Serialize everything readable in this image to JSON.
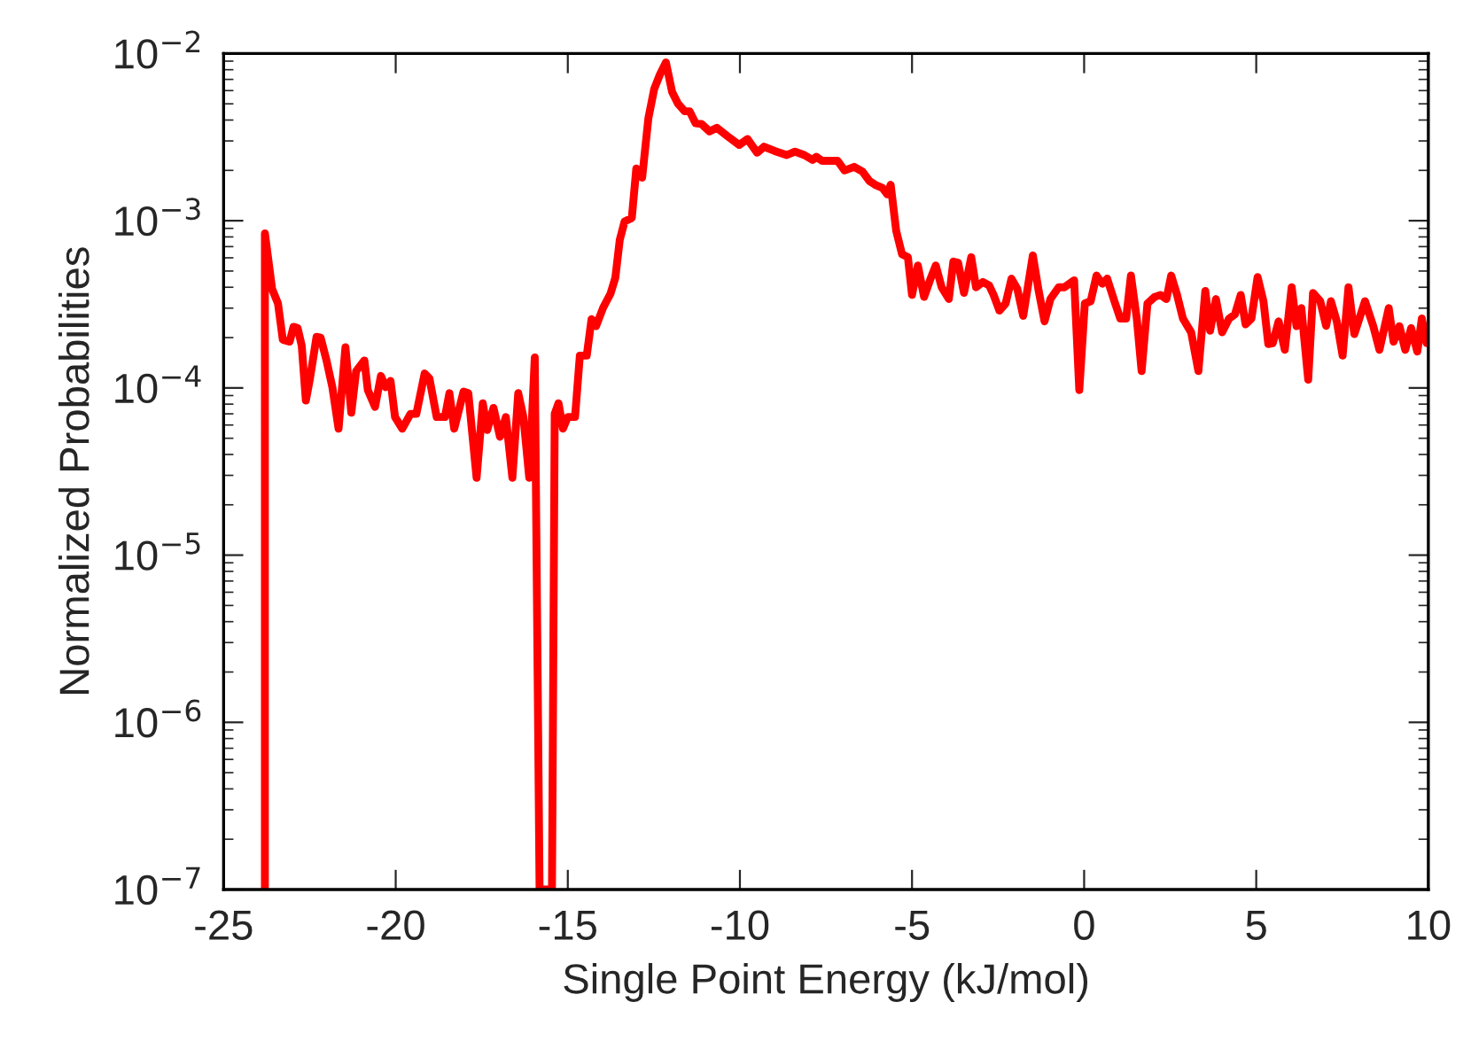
{
  "chart_data": {
    "type": "line",
    "xlabel": "Single Point Energy (kJ/mol)",
    "ylabel": "Normalized Probabilities",
    "log": "y",
    "grid": false,
    "xlim": [
      -25,
      10
    ],
    "xticks": [
      -25,
      -20,
      -15,
      -10,
      -5,
      0,
      5,
      10
    ],
    "ylim": [
      1e-07,
      0.01
    ],
    "yticks": [
      {
        "value": 1e-07,
        "label": "10$^{−7}$"
      },
      {
        "value": 1e-06,
        "label": "10$^{−6}$"
      },
      {
        "value": 1e-05,
        "label": "10$^{−5}$"
      },
      {
        "value": 0.0001,
        "label": "10$^{−4}$"
      },
      {
        "value": 0.001,
        "label": "10$^{−3}$"
      },
      {
        "value": 0.01,
        "label": "10$^{−2}$"
      }
    ],
    "series": [
      {
        "color": "#ff0000",
        "marker": "none",
        "line_style": "solid",
        "x": [
          -23.8,
          -23.8,
          -23.59,
          -23.42,
          -23.28,
          -23.08,
          -22.97,
          -22.85,
          -22.73,
          -22.61,
          -22.49,
          -22.3,
          -22.18,
          -22.01,
          -21.84,
          -21.66,
          -21.46,
          -21.29,
          -21.15,
          -20.91,
          -20.81,
          -20.6,
          -20.43,
          -20.29,
          -20.15,
          -20.02,
          -19.81,
          -19.57,
          -19.4,
          -19.16,
          -19.02,
          -18.81,
          -18.57,
          -18.44,
          -18.3,
          -18.03,
          -17.89,
          -17.65,
          -17.47,
          -17.34,
          -17.16,
          -16.97,
          -16.8,
          -16.61,
          -16.44,
          -16.29,
          -16.12,
          -15.96,
          -15.82,
          -15.46,
          -15.38,
          -15.27,
          -15.14,
          -15.0,
          -14.79,
          -14.65,
          -14.45,
          -14.31,
          -14.18,
          -13.97,
          -13.76,
          -13.62,
          -13.49,
          -13.35,
          -13.14,
          -13.01,
          -12.84,
          -12.66,
          -12.49,
          -12.32,
          -12.15,
          -11.97,
          -11.8,
          -11.6,
          -11.46,
          -11.29,
          -11.12,
          -10.88,
          -10.67,
          -10.36,
          -10.02,
          -9.78,
          -9.5,
          -9.3,
          -8.99,
          -8.64,
          -8.4,
          -8.13,
          -7.89,
          -7.78,
          -7.61,
          -7.16,
          -6.96,
          -6.68,
          -6.44,
          -6.24,
          -6.07,
          -5.86,
          -5.72,
          -5.62,
          -5.46,
          -5.29,
          -5.12,
          -5.0,
          -4.83,
          -4.65,
          -4.48,
          -4.31,
          -4.14,
          -3.93,
          -3.8,
          -3.66,
          -3.49,
          -3.28,
          -3.14,
          -2.94,
          -2.76,
          -2.63,
          -2.46,
          -2.28,
          -2.11,
          -1.94,
          -1.77,
          -1.49,
          -1.32,
          -1.15,
          -0.98,
          -0.74,
          -0.57,
          -0.29,
          -0.14,
          0.02,
          0.19,
          0.36,
          0.53,
          0.67,
          0.88,
          1.05,
          1.22,
          1.36,
          1.53,
          1.67,
          1.84,
          2.05,
          2.22,
          2.39,
          2.53,
          2.7,
          2.87,
          3.11,
          3.32,
          3.52,
          3.66,
          3.83,
          4.01,
          4.21,
          4.38,
          4.55,
          4.69,
          4.86,
          5.04,
          5.21,
          5.35,
          5.48,
          5.65,
          5.83,
          6.03,
          6.17,
          6.31,
          6.51,
          6.65,
          6.86,
          7.03,
          7.17,
          7.34,
          7.51,
          7.68,
          7.85,
          8.16,
          8.4,
          8.58,
          8.85,
          8.99,
          9.16,
          9.33,
          9.5,
          9.68,
          9.81,
          9.95,
          10.0
        ],
        "values": [
          1e-07,
          0.00084,
          0.00039,
          0.00032,
          0.000194,
          0.000189,
          0.000232,
          0.000228,
          0.000179,
          8.4e-05,
          0.000114,
          0.000202,
          0.0002,
          0.000146,
          0.000101,
          5.7e-05,
          0.000175,
          7.1e-05,
          0.000126,
          0.000146,
          9.7e-05,
          7.7e-05,
          0.000118,
          0.000101,
          0.00011,
          6.7e-05,
          5.7e-05,
          7e-05,
          7e-05,
          0.000122,
          0.000114,
          6.7e-05,
          6.7e-05,
          9.3e-05,
          5.7e-05,
          9.5e-05,
          9.3e-05,
          2.9e-05,
          8.1e-05,
          5.6e-05,
          7.6e-05,
          5.1e-05,
          6.7e-05,
          2.9e-05,
          9.3e-05,
          6.7e-05,
          2.9e-05,
          0.000152,
          1e-07,
          1e-07,
          7e-05,
          8.1e-05,
          5.7e-05,
          6.7e-05,
          6.7e-05,
          0.000156,
          0.000156,
          0.000258,
          0.000234,
          0.000303,
          0.000366,
          0.000455,
          0.00077,
          0.00099,
          0.00104,
          0.00205,
          0.00181,
          0.00409,
          0.00614,
          0.00752,
          0.00885,
          0.00589,
          0.00501,
          0.00451,
          0.00451,
          0.00383,
          0.00379,
          0.00342,
          0.00359,
          0.0032,
          0.00284,
          0.00308,
          0.00255,
          0.00277,
          0.00261,
          0.00247,
          0.00259,
          0.00247,
          0.00231,
          0.00241,
          0.00228,
          0.00228,
          0.002,
          0.0021,
          0.00197,
          0.00173,
          0.00164,
          0.00157,
          0.00144,
          0.00164,
          0.00087,
          0.00063,
          0.000605,
          0.00036,
          0.00054,
          0.00035,
          0.00044,
          0.00054,
          0.0004,
          0.00034,
          0.00057,
          0.00056,
          0.00037,
          0.000605,
          0.0004,
          0.00043,
          0.00041,
          0.00036,
          0.00029,
          0.00032,
          0.00045,
          0.00039,
          0.00027,
          0.00062,
          0.00038,
          0.00025,
          0.00034,
          0.0004,
          0.0004,
          0.00044,
          9.7e-05,
          0.00032,
          0.00033,
          0.00047,
          0.00042,
          0.00045,
          0.00033,
          0.00026,
          0.00026,
          0.00047,
          0.00026,
          0.000126,
          0.00032,
          0.00035,
          0.00036,
          0.00034,
          0.00047,
          0.00036,
          0.00026,
          0.000215,
          0.000126,
          0.00038,
          0.00022,
          0.00034,
          0.000215,
          0.00026,
          0.000275,
          0.00036,
          0.00024,
          0.00026,
          0.00046,
          0.00033,
          0.000183,
          0.000185,
          0.00025,
          0.000169,
          0.0004,
          0.000234,
          0.0003,
          0.000112,
          0.00037,
          0.00033,
          0.000235,
          0.00033,
          0.00025,
          0.000156,
          0.0004,
          0.00021,
          0.00033,
          0.000234,
          0.000169,
          0.0003,
          0.000189,
          0.000234,
          0.000169,
          0.000228,
          0.000165,
          0.00026,
          0.000185,
          0.000194
        ]
      }
    ]
  }
}
